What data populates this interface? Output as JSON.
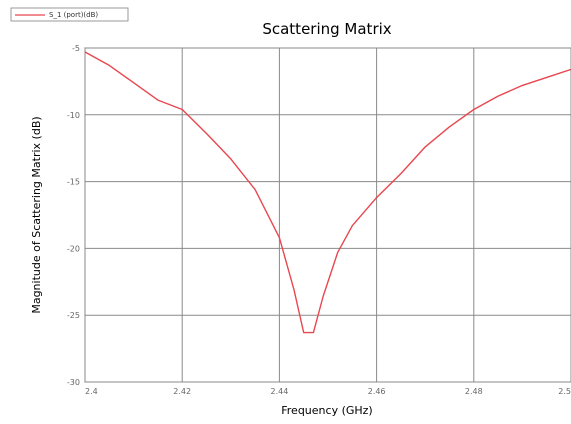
{
  "chart_data": {
    "type": "line",
    "title": "Scattering Matrix",
    "xlabel": "Frequency (GHz)",
    "ylabel": "Magnitude of Scattering Matrix (dB)",
    "xlim": [
      2.4,
      2.5
    ],
    "ylim": [
      -30,
      -5
    ],
    "xticks": [
      2.4,
      2.42,
      2.44,
      2.46,
      2.48,
      2.5
    ],
    "yticks": [
      -5,
      -10,
      -15,
      -20,
      -25,
      -30
    ],
    "xtick_labels": [
      "2.4",
      "2.42",
      "2.44",
      "2.46",
      "2.48",
      "2.5"
    ],
    "ytick_labels": [
      "-5",
      "-10",
      "-15",
      "-20",
      "-25",
      "-30"
    ],
    "grid": true,
    "legend_position": "top-left",
    "series": [
      {
        "name": "S_1 (port)(dB)",
        "color": "#e8474f",
        "x": [
          2.4,
          2.405,
          2.41,
          2.415,
          2.42,
          2.425,
          2.43,
          2.435,
          2.44,
          2.443,
          2.445,
          2.447,
          2.449,
          2.452,
          2.455,
          2.46,
          2.465,
          2.47,
          2.475,
          2.48,
          2.485,
          2.49,
          2.495,
          2.5
        ],
        "y": [
          -5.3,
          -6.3,
          -7.6,
          -8.9,
          -9.6,
          -11.4,
          -13.3,
          -15.6,
          -19.2,
          -23.1,
          -26.3,
          -26.3,
          -23.6,
          -20.3,
          -18.3,
          -16.2,
          -14.4,
          -12.4,
          -10.9,
          -9.6,
          -8.6,
          -7.8,
          -7.2,
          -6.6
        ]
      }
    ]
  }
}
